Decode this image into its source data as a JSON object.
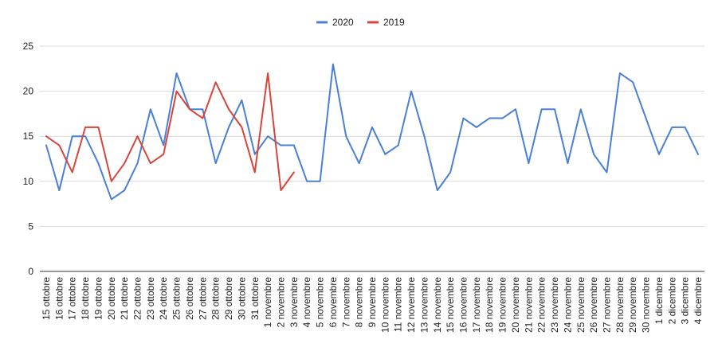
{
  "chart_data": {
    "type": "line",
    "title": "",
    "xlabel": "",
    "ylabel": "",
    "ylim": [
      0,
      25
    ],
    "yticks": [
      "0",
      "5",
      "10",
      "15",
      "20",
      "25"
    ],
    "grid": true,
    "legend_position": "top",
    "categories": [
      "15 ottobre",
      "16 ottobre",
      "17 ottobre",
      "18 ottobre",
      "19 ottobre",
      "20 ottobre",
      "21 ottobre",
      "22 ottobre",
      "23 ottobre",
      "24 ottobre",
      "25 ottobre",
      "26 ottobre",
      "27 ottobre",
      "28 ottobre",
      "29 ottobre",
      "30 ottobre",
      "31 ottobre",
      "1 novembre",
      "2 novembre",
      "3 novembre",
      "4 novembre",
      "5 novembre",
      "6 novembre",
      "7 novembre",
      "8 novembre",
      "9 novembre",
      "10 novembre",
      "11 novembre",
      "12 novembre",
      "13 novembre",
      "14 novembre",
      "15 novembre",
      "16 novembre",
      "17 novembre",
      "18 novembre",
      "19 novembre",
      "20 novembre",
      "21 novembre",
      "22 novembre",
      "23 novembre",
      "24 novembre",
      "25 novembre",
      "26 novembre",
      "27 novembre",
      "28 novembre",
      "29 novembre",
      "30 novembre",
      "1 dicembre",
      "2 dicembre",
      "3 dicembre",
      "4 dicembre"
    ],
    "series": [
      {
        "name": "2020",
        "color": "#4a7fd6",
        "values": [
          14,
          9,
          15,
          15,
          12,
          8,
          9,
          12,
          18,
          14,
          22,
          18,
          18,
          12,
          16,
          19,
          13,
          15,
          14,
          14,
          10,
          10,
          23,
          15,
          12,
          16,
          13,
          14,
          20,
          15,
          9,
          11,
          17,
          16,
          17,
          17,
          18,
          12,
          18,
          18,
          12,
          18,
          13,
          11,
          22,
          21,
          17,
          13,
          16,
          16,
          13
        ]
      },
      {
        "name": "2019",
        "color": "#d9443a",
        "values": [
          15,
          14,
          11,
          16,
          16,
          10,
          12,
          15,
          12,
          13,
          20,
          18,
          17,
          21,
          18,
          16,
          11,
          22,
          9,
          11,
          null,
          null,
          null,
          null,
          null,
          null,
          null,
          null,
          null,
          null,
          null,
          null,
          null,
          null,
          null,
          null,
          null,
          null,
          null,
          null,
          null,
          null,
          null,
          null,
          null,
          null,
          null,
          null,
          null,
          null,
          null
        ]
      }
    ]
  }
}
